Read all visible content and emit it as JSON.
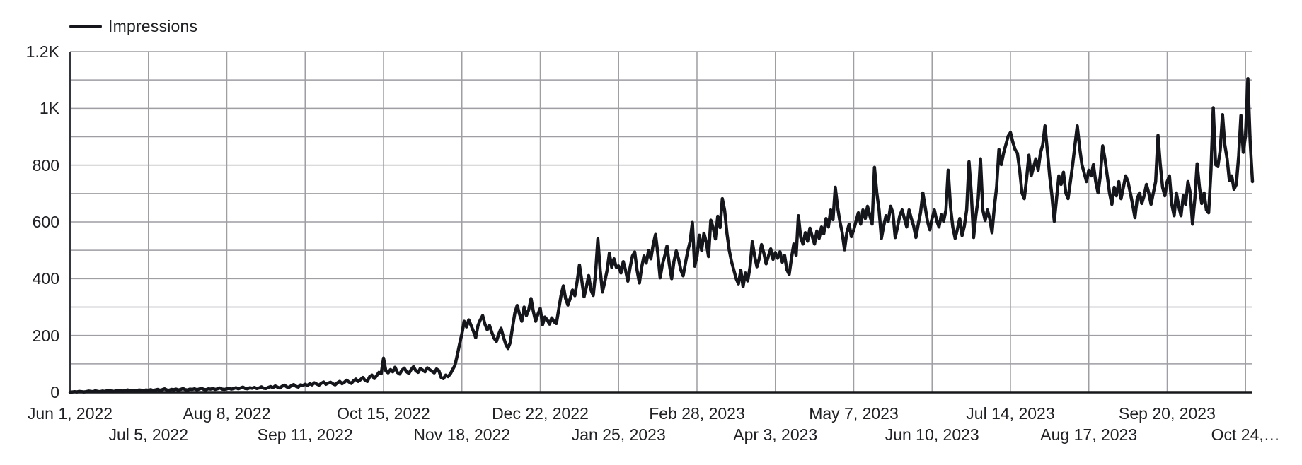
{
  "page": {
    "background": "#ffffff"
  },
  "legend": {
    "label": "Impressions",
    "swatch_color": "#14161c"
  },
  "chart_data": {
    "type": "line",
    "title": "",
    "legend_position": "top-left",
    "grid": {
      "show": true,
      "color": "#9e9ea3"
    },
    "axis": {
      "baseline_color": "#17181c",
      "left_axis_color": "#33363c",
      "label_color": "#202124"
    },
    "x": {
      "start_label": "Jun 1, 2022",
      "end_label": "Oct 24,…",
      "tick_interval_days": 34,
      "total_days": 513,
      "tick_day_offsets": [
        0,
        34,
        68,
        102,
        136,
        170,
        204,
        238,
        272,
        306,
        340,
        374,
        408,
        442,
        476,
        510
      ],
      "tick_labels": [
        "Jun 1, 2022",
        "Jul 5, 2022",
        "Aug 8, 2022",
        "Sep 11, 2022",
        "Oct 15, 2022",
        "Nov 18, 2022",
        "Dec 22, 2022",
        "Jan 25, 2023",
        "Feb 28, 2023",
        "Apr 3, 2023",
        "May 7, 2023",
        "Jun 10, 2023",
        "Jul 14, 2023",
        "Aug 17, 2023",
        "Sep 20, 2023",
        "Oct 24,…"
      ]
    },
    "y": {
      "lim": [
        0,
        1200
      ],
      "tick_values": [
        0,
        200,
        400,
        600,
        800,
        1000,
        1200
      ],
      "tick_labels": [
        "0",
        "200",
        "400",
        "600",
        "800",
        "1K",
        "1.2K"
      ],
      "minor_grid_step": 100
    },
    "series": [
      {
        "name": "Impressions",
        "color": "#14161c",
        "values": [
          0,
          1,
          2,
          1,
          3,
          2,
          1,
          2,
          4,
          3,
          2,
          5,
          3,
          2,
          4,
          3,
          5,
          6,
          4,
          3,
          5,
          7,
          5,
          4,
          6,
          8,
          6,
          5,
          7,
          6,
          8,
          7,
          6,
          8,
          7,
          9,
          6,
          8,
          10,
          7,
          9,
          12,
          8,
          7,
          10,
          9,
          11,
          8,
          10,
          13,
          9,
          8,
          11,
          10,
          12,
          9,
          11,
          14,
          10,
          9,
          12,
          11,
          13,
          10,
          12,
          15,
          11,
          10,
          12,
          14,
          11,
          13,
          16,
          12,
          15,
          18,
          13,
          12,
          16,
          14,
          17,
          13,
          15,
          19,
          14,
          13,
          17,
          20,
          16,
          22,
          18,
          15,
          21,
          25,
          19,
          17,
          23,
          27,
          21,
          18,
          26,
          24,
          28,
          24,
          30,
          26,
          33,
          29,
          25,
          31,
          36,
          28,
          32,
          35,
          30,
          26,
          33,
          38,
          30,
          35,
          42,
          36,
          31,
          40,
          46,
          38,
          44,
          52,
          42,
          38,
          55,
          60,
          48,
          58,
          70,
          65,
          120,
          75,
          68,
          80,
          72,
          88,
          70,
          64,
          78,
          85,
          72,
          66,
          80,
          90,
          76,
          70,
          84,
          78,
          72,
          86,
          80,
          74,
          68,
          82,
          76,
          52,
          48,
          60,
          55,
          65,
          80,
          95,
          130,
          170,
          205,
          250,
          230,
          255,
          235,
          215,
          192,
          235,
          255,
          270,
          240,
          220,
          235,
          210,
          190,
          179,
          205,
          225,
          195,
          170,
          154,
          175,
          230,
          280,
          306,
          275,
          250,
          300,
          270,
          290,
          330,
          285,
          250,
          275,
          295,
          237,
          265,
          255,
          240,
          262,
          248,
          242,
          290,
          340,
          375,
          330,
          307,
          330,
          360,
          340,
          390,
          448,
          395,
          336,
          370,
          411,
          360,
          341,
          420,
          540,
          430,
          353,
          390,
          430,
          490,
          440,
          470,
          440,
          445,
          420,
          460,
          430,
          391,
          440,
          480,
          494,
          430,
          385,
          440,
          480,
          455,
          500,
          470,
          520,
          556,
          490,
          403,
          450,
          480,
          515,
          450,
          400,
          460,
          498,
          470,
          430,
          410,
          455,
          498,
          530,
          598,
          444,
          478,
          553,
          500,
          560,
          530,
          478,
          606,
          580,
          540,
          620,
          580,
          682,
          640,
          560,
          500,
          460,
          430,
          400,
          382,
          430,
          372,
          420,
          392,
          440,
          530,
          480,
          442,
          470,
          520,
          490,
          452,
          480,
          505,
          468,
          492,
          472,
          495,
          458,
          482,
          432,
          415,
          472,
          522,
          482,
          622,
          545,
          522,
          562,
          532,
          578,
          548,
          522,
          568,
          542,
          582,
          558,
          612,
          582,
          642,
          608,
          722,
          652,
          602,
          562,
          502,
          562,
          592,
          548,
          572,
          602,
          632,
          592,
          642,
          612,
          655,
          622,
          592,
          792,
          702,
          642,
          542,
          585,
          622,
          602,
          655,
          632,
          545,
          582,
          622,
          642,
          612,
          582,
          642,
          612,
          585,
          545,
          592,
          632,
          702,
          652,
          602,
          572,
          612,
          642,
          605,
          582,
          625,
          602,
          642,
          782,
          652,
          582,
          542,
          575,
          612,
          552,
          585,
          642,
          812,
          702,
          545,
          622,
          682,
          822,
          642,
          605,
          642,
          612,
          562,
          652,
          722,
          855,
          802,
          842,
          872,
          902,
          915,
          882,
          855,
          842,
          782,
          702,
          682,
          752,
          835,
          762,
          792,
          822,
          782,
          842,
          872,
          938,
          852,
          762,
          692,
          602,
          682,
          762,
          732,
          775,
          702,
          682,
          742,
          802,
          872,
          938,
          862,
          802,
          772,
          742,
          782,
          762,
          802,
          742,
          702,
          762,
          868,
          822,
          762,
          702,
          662,
          722,
          692,
          742,
          682,
          722,
          762,
          742,
          702,
          662,
          615,
          682,
          702,
          665,
          692,
          732,
          702,
          662,
          702,
          742,
          905,
          802,
          722,
          692,
          742,
          762,
          662,
          622,
          702,
          655,
          622,
          692,
          662,
          742,
          702,
          592,
          682,
          805,
          722,
          665,
          702,
          642,
          632,
          782,
          1002,
          802,
          795,
          852,
          978,
          872,
          822,
          745,
          762,
          715,
          732,
          832,
          975,
          845,
          905,
          1105,
          885,
          742
        ]
      }
    ]
  }
}
